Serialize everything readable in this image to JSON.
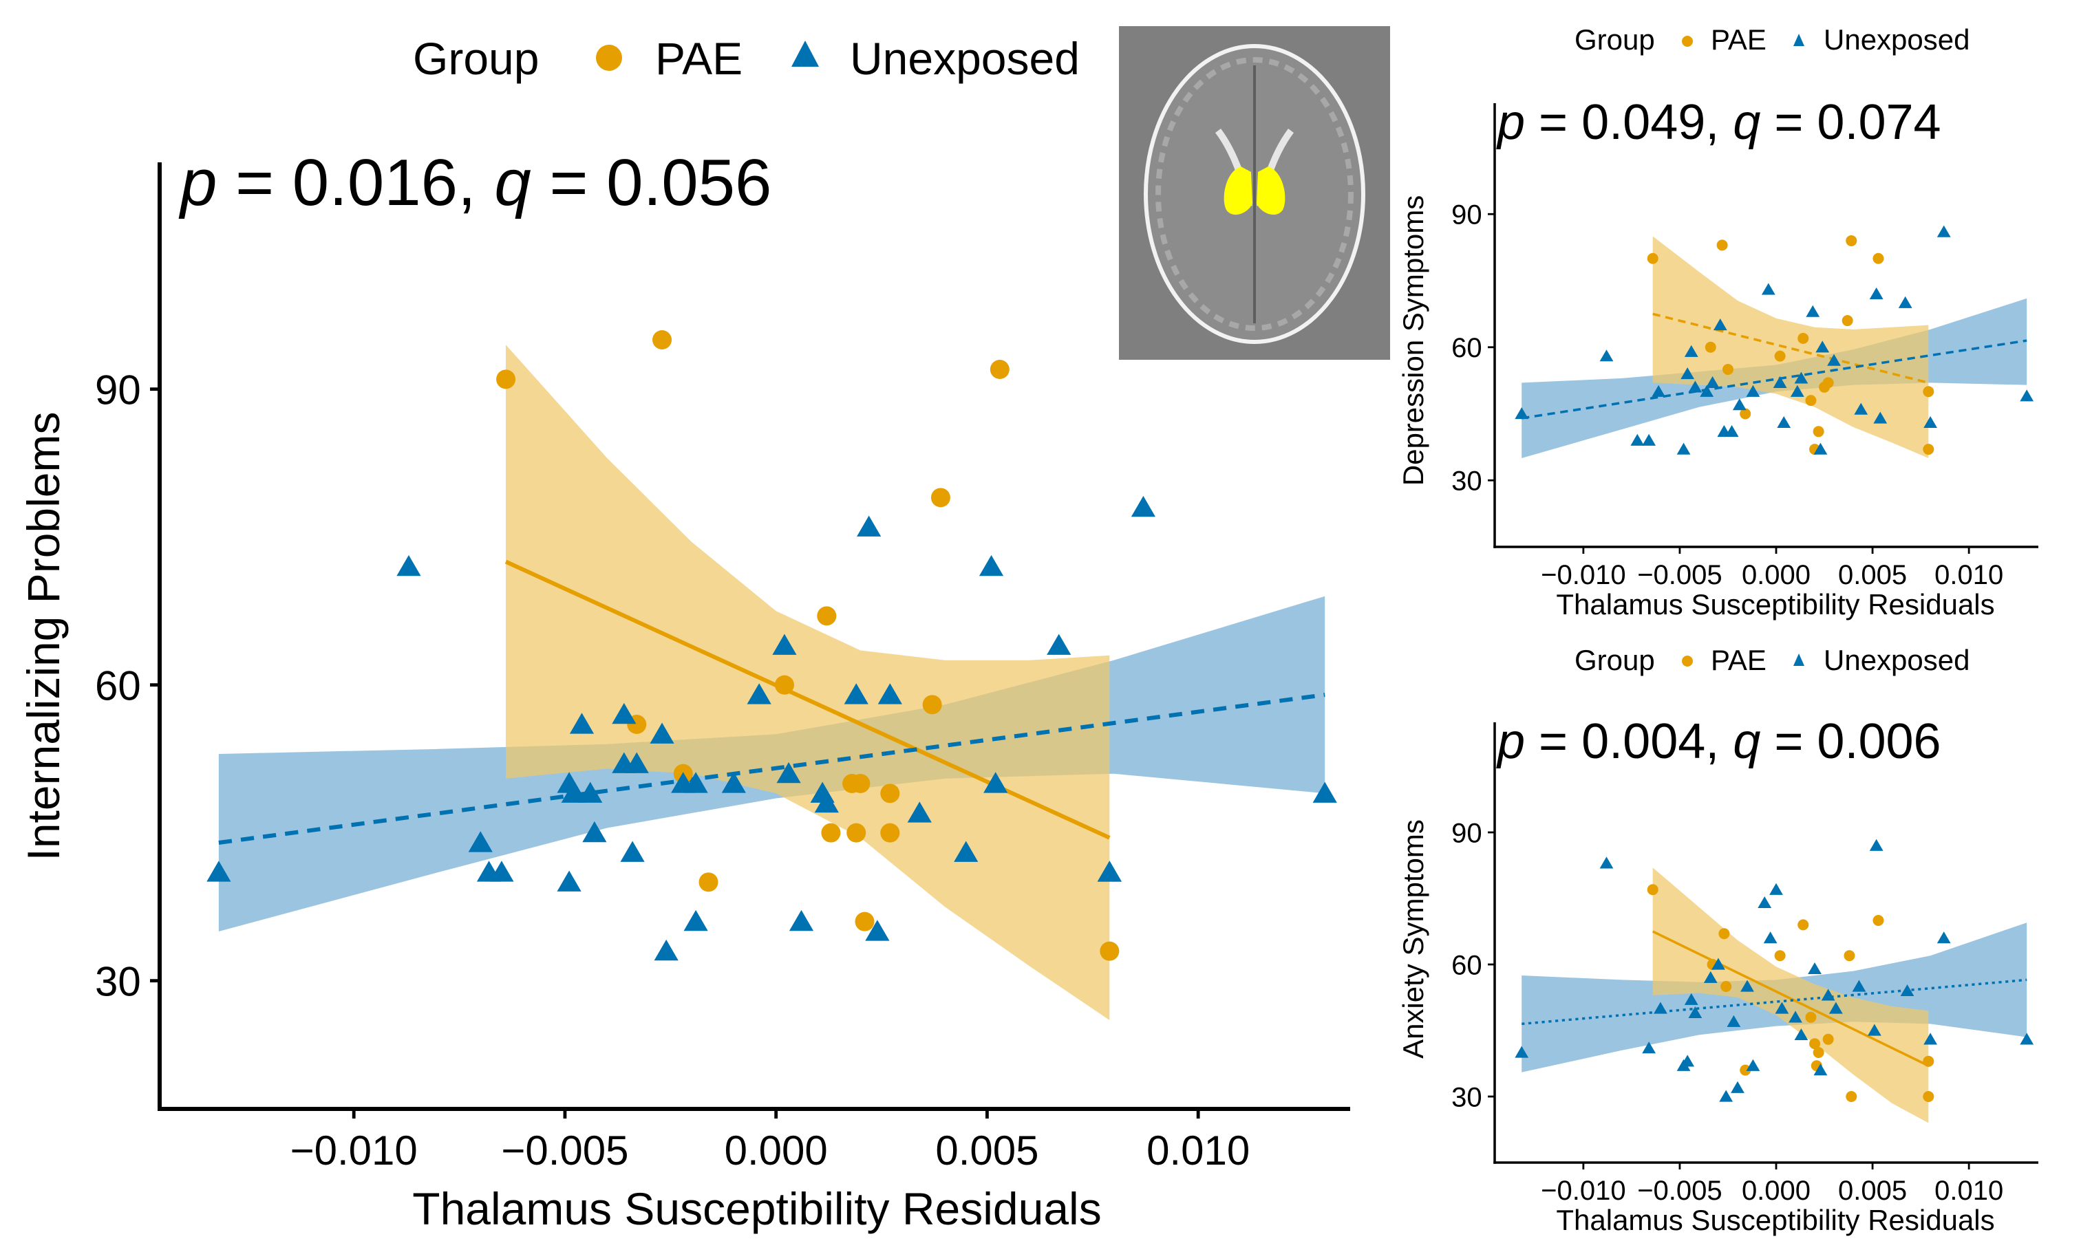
{
  "legend": {
    "title": "Group",
    "entries": [
      "PAE",
      "Unexposed"
    ]
  },
  "colors": {
    "pae": "#E69F00",
    "unexposed": "#0072B2",
    "pae_band": "#F0C86A",
    "unexposed_band": "#7FB3D8",
    "brain_bg": "#7f7f7f",
    "roi": "#FFFF00"
  },
  "inset": {
    "description": "axial brain MRI susceptibility map with thalamus highlighted"
  },
  "chart_data": [
    {
      "type": "scatter",
      "panel": "main",
      "title": "p = 0.016, q = 0.056",
      "annotation": {
        "p_label": "p",
        "p_value": "0.016",
        "q_label": "q",
        "q_value": "0.056"
      },
      "xlabel": "Thalamus Susceptibility Residuals",
      "ylabel": "Internalizing Problems",
      "xlim": [
        -0.0146,
        0.0136
      ],
      "ylim": [
        17,
        113
      ],
      "xticks": [
        -0.01,
        -0.005,
        0.0,
        0.005,
        0.01
      ],
      "xtick_labels": [
        "−0.010",
        "−0.005",
        "0.000",
        "0.005",
        "0.010"
      ],
      "yticks": [
        30,
        60,
        90
      ],
      "ytick_labels": [
        "30",
        "60",
        "90"
      ],
      "series": [
        {
          "name": "PAE",
          "marker": "circle",
          "line_style": "solid",
          "points": [
            [
              -0.0064,
              91
            ],
            [
              -0.0027,
              95
            ],
            [
              0.0053,
              92
            ],
            [
              0.0039,
              79
            ],
            [
              0.0012,
              67
            ],
            [
              0.0002,
              60
            ],
            [
              0.0037,
              58
            ],
            [
              -0.0033,
              56
            ],
            [
              -0.0022,
              51
            ],
            [
              0.0018,
              50
            ],
            [
              0.002,
              50
            ],
            [
              0.0027,
              49
            ],
            [
              0.0013,
              45
            ],
            [
              0.0019,
              45
            ],
            [
              0.0027,
              45
            ],
            [
              -0.0016,
              40
            ],
            [
              0.0021,
              36
            ],
            [
              0.0079,
              33
            ]
          ],
          "fit": {
            "x": [
              -0.0064,
              0.0079
            ],
            "y": [
              72.5,
              44.5
            ]
          },
          "band": {
            "x": [
              -0.0064,
              -0.004,
              -0.002,
              0.0,
              0.002,
              0.004,
              0.006,
              0.0079
            ],
            "upper": [
              94.5,
              83.0,
              74.5,
              67.5,
              63.5,
              62.5,
              62.5,
              63.0
            ],
            "lower": [
              50.5,
              51.5,
              51.0,
              49.0,
              44.5,
              37.5,
              31.5,
              26.0
            ]
          }
        },
        {
          "name": "Unexposed",
          "marker": "triangle",
          "line_style": "dashed",
          "points": [
            [
              -0.0132,
              41
            ],
            [
              -0.0087,
              72
            ],
            [
              -0.007,
              44
            ],
            [
              -0.0068,
              41
            ],
            [
              -0.0065,
              41
            ],
            [
              -0.0049,
              50
            ],
            [
              -0.0048,
              49
            ],
            [
              -0.0049,
              40
            ],
            [
              -0.0046,
              56
            ],
            [
              -0.0044,
              49
            ],
            [
              -0.0043,
              45
            ],
            [
              -0.0036,
              57
            ],
            [
              -0.0036,
              52
            ],
            [
              -0.0034,
              43
            ],
            [
              -0.0033,
              52
            ],
            [
              -0.0027,
              55
            ],
            [
              -0.0026,
              33
            ],
            [
              -0.0022,
              50
            ],
            [
              -0.0019,
              36
            ],
            [
              -0.0019,
              50
            ],
            [
              -0.001,
              50
            ],
            [
              -0.0004,
              59
            ],
            [
              0.0002,
              64
            ],
            [
              0.0003,
              51
            ],
            [
              0.0006,
              36
            ],
            [
              0.0011,
              49
            ],
            [
              0.0012,
              48
            ],
            [
              0.0019,
              59
            ],
            [
              0.0022,
              76
            ],
            [
              0.0024,
              35
            ],
            [
              0.0027,
              59
            ],
            [
              0.0034,
              47
            ],
            [
              0.0045,
              43
            ],
            [
              0.0051,
              72
            ],
            [
              0.0052,
              50
            ],
            [
              0.0067,
              64
            ],
            [
              0.0079,
              41
            ],
            [
              0.0079,
              41
            ],
            [
              0.0087,
              78
            ],
            [
              0.013,
              49
            ]
          ],
          "fit": {
            "x": [
              -0.0132,
              0.013
            ],
            "y": [
              44.0,
              59.0
            ]
          },
          "band": {
            "x": [
              -0.0132,
              -0.008,
              -0.004,
              0.0,
              0.004,
              0.008,
              0.013
            ],
            "upper": [
              53.0,
              53.5,
              54.0,
              55.0,
              58.0,
              62.5,
              69.0
            ],
            "lower": [
              35.0,
              41.0,
              45.5,
              48.5,
              50.5,
              51.0,
              49.0
            ]
          }
        }
      ]
    },
    {
      "type": "scatter",
      "panel": "top-right",
      "title": "p = 0.049, q = 0.074",
      "legend_title": "Group",
      "annotation": {
        "p_label": "p",
        "p_value": "0.049",
        "q_label": "q",
        "q_value": "0.074"
      },
      "xlabel": "Thalamus Susceptibility Residuals",
      "ylabel": "Depression Symptoms",
      "xlim": [
        -0.0146,
        0.0136
      ],
      "ylim": [
        15,
        115
      ],
      "xticks": [
        -0.01,
        -0.005,
        0.0,
        0.005,
        0.01
      ],
      "xtick_labels": [
        "−0.010",
        "−0.005",
        "0.000",
        "0.005",
        "0.010"
      ],
      "yticks": [
        30,
        60,
        90
      ],
      "ytick_labels": [
        "30",
        "60",
        "90"
      ],
      "series": [
        {
          "name": "PAE",
          "marker": "circle",
          "line_style": "dashed",
          "points": [
            [
              -0.0064,
              80
            ],
            [
              -0.0034,
              60
            ],
            [
              -0.0028,
              83
            ],
            [
              -0.0025,
              55
            ],
            [
              -0.0016,
              45
            ],
            [
              0.0002,
              58
            ],
            [
              0.0014,
              62
            ],
            [
              0.0018,
              48
            ],
            [
              0.0022,
              41
            ],
            [
              0.002,
              37
            ],
            [
              0.0025,
              51
            ],
            [
              0.0027,
              52
            ],
            [
              0.0037,
              66
            ],
            [
              0.0039,
              84
            ],
            [
              0.0053,
              80
            ],
            [
              0.0079,
              50
            ],
            [
              0.0079,
              37
            ]
          ],
          "fit": {
            "x": [
              -0.0064,
              0.0079
            ],
            "y": [
              67.5,
              52.0
            ]
          },
          "band": {
            "x": [
              -0.0064,
              -0.004,
              -0.002,
              0.0,
              0.002,
              0.004,
              0.006,
              0.0079
            ],
            "upper": [
              85.0,
              77.0,
              70.5,
              66.5,
              64.5,
              64.0,
              64.5,
              65.0
            ],
            "lower": [
              52.0,
              51.5,
              51.0,
              49.5,
              46.5,
              42.0,
              38.5,
              35.0
            ]
          }
        },
        {
          "name": "Unexposed",
          "marker": "triangle",
          "line_style": "dashed",
          "points": [
            [
              -0.0132,
              45
            ],
            [
              -0.0088,
              58
            ],
            [
              -0.0072,
              39
            ],
            [
              -0.0066,
              39
            ],
            [
              -0.0061,
              50
            ],
            [
              -0.0048,
              37
            ],
            [
              -0.0046,
              54
            ],
            [
              -0.0044,
              59
            ],
            [
              -0.0042,
              51
            ],
            [
              -0.0036,
              50
            ],
            [
              -0.0033,
              52
            ],
            [
              -0.0029,
              65
            ],
            [
              -0.0027,
              41
            ],
            [
              -0.0023,
              41
            ],
            [
              -0.0019,
              47
            ],
            [
              -0.0012,
              50
            ],
            [
              -0.0004,
              73
            ],
            [
              0.0002,
              52
            ],
            [
              0.0004,
              43
            ],
            [
              0.0011,
              50
            ],
            [
              0.0013,
              53
            ],
            [
              0.0019,
              68
            ],
            [
              0.0023,
              37
            ],
            [
              0.0024,
              60
            ],
            [
              0.003,
              57
            ],
            [
              0.0044,
              46
            ],
            [
              0.0052,
              72
            ],
            [
              0.0054,
              44
            ],
            [
              0.0067,
              70
            ],
            [
              0.008,
              43
            ],
            [
              0.0087,
              86
            ],
            [
              0.013,
              49
            ]
          ],
          "fit": {
            "x": [
              -0.0132,
              0.013
            ],
            "y": [
              44.0,
              61.5
            ]
          },
          "band": {
            "x": [
              -0.0132,
              -0.008,
              -0.004,
              0.0,
              0.004,
              0.008,
              0.013
            ],
            "upper": [
              52.0,
              53.0,
              54.5,
              56.0,
              59.5,
              64.0,
              71.0
            ],
            "lower": [
              35.0,
              41.5,
              46.5,
              50.0,
              51.5,
              52.0,
              51.5
            ]
          }
        }
      ]
    },
    {
      "type": "scatter",
      "panel": "bottom-right",
      "title": "p = 0.004, q = 0.006",
      "legend_title": "Group",
      "annotation": {
        "p_label": "p",
        "p_value": "0.004",
        "q_label": "q",
        "q_value": "0.006"
      },
      "xlabel": "Thalamus Susceptibility Residuals",
      "ylabel": "Anxiety Symptoms",
      "xlim": [
        -0.0146,
        0.0136
      ],
      "ylim": [
        15,
        115
      ],
      "xticks": [
        -0.01,
        -0.005,
        0.0,
        0.005,
        0.01
      ],
      "xtick_labels": [
        "−0.010",
        "−0.005",
        "0.000",
        "0.005",
        "0.010"
      ],
      "yticks": [
        30,
        60,
        90
      ],
      "ytick_labels": [
        "30",
        "60",
        "90"
      ],
      "series": [
        {
          "name": "PAE",
          "marker": "circle",
          "line_style": "solid",
          "points": [
            [
              -0.0064,
              77
            ],
            [
              -0.0033,
              60
            ],
            [
              -0.0027,
              67
            ],
            [
              -0.0026,
              55
            ],
            [
              -0.0016,
              36
            ],
            [
              0.0002,
              62
            ],
            [
              0.0014,
              69
            ],
            [
              0.0018,
              48
            ],
            [
              0.002,
              42
            ],
            [
              0.0021,
              37
            ],
            [
              0.0022,
              40
            ],
            [
              0.0027,
              43
            ],
            [
              0.0038,
              62
            ],
            [
              0.0039,
              30
            ],
            [
              0.0053,
              70
            ],
            [
              0.0079,
              38
            ],
            [
              0.0079,
              30
            ]
          ],
          "fit": {
            "x": [
              -0.0064,
              0.0079
            ],
            "y": [
              67.5,
              37.0
            ]
          },
          "band": {
            "x": [
              -0.0064,
              -0.004,
              -0.002,
              0.0,
              0.002,
              0.004,
              0.006,
              0.0079
            ],
            "upper": [
              82.0,
              73.0,
              65.5,
              59.5,
              55.5,
              52.5,
              50.5,
              49.5
            ],
            "lower": [
              53.0,
              53.5,
              52.5,
              48.5,
              42.0,
              35.0,
              28.5,
              24.0
            ]
          }
        },
        {
          "name": "Unexposed",
          "marker": "triangle",
          "line_style": "dotted",
          "points": [
            [
              -0.0132,
              40
            ],
            [
              -0.0088,
              83
            ],
            [
              -0.0066,
              41
            ],
            [
              -0.006,
              50
            ],
            [
              -0.0048,
              37
            ],
            [
              -0.0046,
              38
            ],
            [
              -0.0044,
              52
            ],
            [
              -0.0042,
              49
            ],
            [
              -0.0034,
              57
            ],
            [
              -0.003,
              60
            ],
            [
              -0.0026,
              30
            ],
            [
              -0.0022,
              47
            ],
            [
              -0.002,
              32
            ],
            [
              -0.0015,
              55
            ],
            [
              -0.0012,
              37
            ],
            [
              -0.0006,
              74
            ],
            [
              -0.0003,
              66
            ],
            [
              0.0,
              77
            ],
            [
              0.0003,
              50
            ],
            [
              0.001,
              48
            ],
            [
              0.0013,
              44
            ],
            [
              0.002,
              59
            ],
            [
              0.0023,
              36
            ],
            [
              0.0027,
              53
            ],
            [
              0.0031,
              50
            ],
            [
              0.0043,
              55
            ],
            [
              0.0051,
              45
            ],
            [
              0.0052,
              87
            ],
            [
              0.0068,
              54
            ],
            [
              0.008,
              43
            ],
            [
              0.0087,
              66
            ],
            [
              0.013,
              43
            ]
          ],
          "fit": {
            "x": [
              -0.0132,
              0.013
            ],
            "y": [
              46.5,
              56.5
            ]
          },
          "band": {
            "x": [
              -0.0132,
              -0.008,
              -0.004,
              0.0,
              0.004,
              0.008,
              0.013
            ],
            "upper": [
              57.5,
              56.5,
              56.0,
              56.5,
              58.5,
              62.0,
              69.5
            ],
            "lower": [
              35.5,
              40.5,
              44.0,
              46.0,
              47.0,
              46.5,
              43.5
            ]
          }
        }
      ]
    }
  ]
}
